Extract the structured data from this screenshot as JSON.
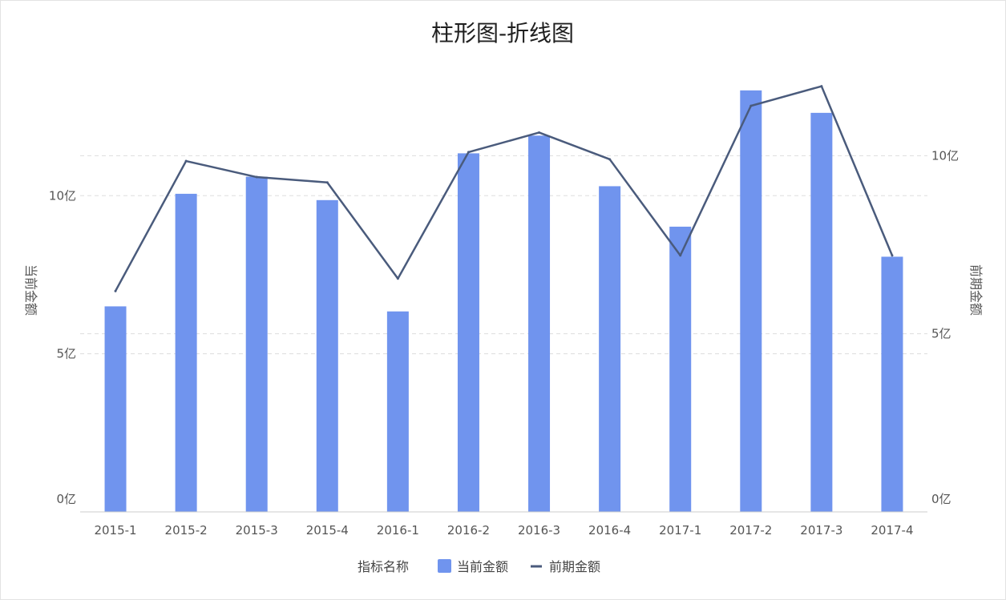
{
  "chart_data": {
    "type": "bar",
    "title": "柱形图-折线图",
    "categories": [
      "2015-1",
      "2015-2",
      "2015-3",
      "2015-4",
      "2016-1",
      "2016-2",
      "2016-3",
      "2016-4",
      "2017-1",
      "2017-2",
      "2017-3",
      "2017-4"
    ],
    "series": [
      {
        "name": "当前金额",
        "type": "bar",
        "axis": "left",
        "color": "#7094ee",
        "values": [
          6.5,
          10.06,
          10.6,
          9.86,
          6.34,
          11.34,
          11.9,
          10.3,
          9.02,
          13.33,
          12.62,
          8.07
        ]
      },
      {
        "name": "前期金额",
        "type": "line",
        "axis": "right",
        "color": "#4a5b7c",
        "values": [
          6.2,
          9.85,
          9.4,
          9.25,
          6.55,
          10.1,
          10.65,
          9.9,
          7.2,
          11.4,
          11.95,
          7.2
        ]
      }
    ],
    "yaxis_left": {
      "label": "当前金额",
      "ticks": [
        0,
        5,
        10
      ],
      "tick_labels": [
        "0亿",
        "5亿",
        "10亿"
      ],
      "range": [
        0,
        13.63
      ]
    },
    "yaxis_right": {
      "label": "前期金额",
      "ticks": [
        0,
        5,
        10
      ],
      "tick_labels": [
        "0亿",
        "5亿",
        "10亿"
      ],
      "range": [
        0,
        12.1
      ]
    },
    "legend": {
      "title": "指标名称",
      "position": "bottom",
      "items": [
        "当前金额",
        "前期金额"
      ]
    },
    "grid": true
  }
}
